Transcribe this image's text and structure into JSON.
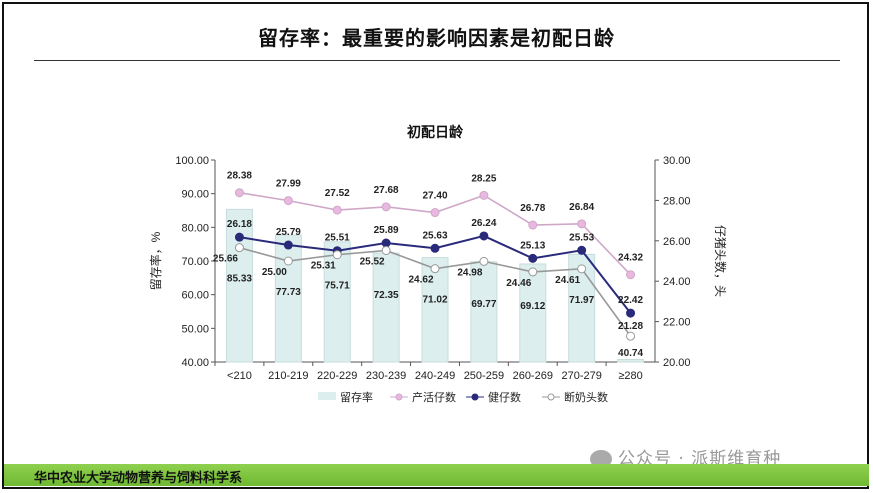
{
  "slide_title": "留存率：最重要的影响因素是初配日龄",
  "footer_text": "华中农业大学动物营养与饲料科学系",
  "watermark": "公众号 · 派斯维育种",
  "chart_data": {
    "type": "bar+line",
    "title": "初配日龄",
    "ylabel_left": "留存率，%",
    "ylabel_right": "仔猪头数，头",
    "ylim_left": [
      40,
      100
    ],
    "yticks_left": [
      "40.00",
      "50.00",
      "60.00",
      "70.00",
      "80.00",
      "90.00",
      "100.00"
    ],
    "ylim_right": [
      20,
      30
    ],
    "yticks_right": [
      "20.00",
      "22.00",
      "24.00",
      "26.00",
      "28.00",
      "30.00"
    ],
    "categories": [
      "<210",
      "210-219",
      "220-229",
      "230-239",
      "240-249",
      "250-259",
      "260-269",
      "270-279",
      "≥280"
    ],
    "legend_position": "bottom",
    "series": [
      {
        "name": "留存率",
        "type": "bar",
        "axis": "left",
        "color": "#dcefee",
        "values": [
          85.33,
          77.73,
          75.71,
          72.35,
          71.02,
          69.77,
          69.12,
          71.97,
          40.74
        ]
      },
      {
        "name": "产活仔数",
        "type": "line",
        "axis": "right",
        "color": "#e8b8e0",
        "values": [
          28.38,
          27.99,
          27.52,
          27.68,
          27.4,
          28.25,
          26.78,
          26.84,
          24.32
        ]
      },
      {
        "name": "健仔数",
        "type": "line",
        "axis": "right",
        "color": "#2a2a7a",
        "values": [
          26.18,
          25.79,
          25.51,
          25.89,
          25.63,
          26.24,
          25.13,
          25.53,
          22.42
        ]
      },
      {
        "name": "断奶头数",
        "type": "line",
        "axis": "right",
        "color": "#ffffff",
        "values": [
          25.66,
          25.0,
          25.31,
          25.52,
          24.62,
          24.98,
          24.46,
          24.61,
          21.28
        ]
      }
    ]
  }
}
